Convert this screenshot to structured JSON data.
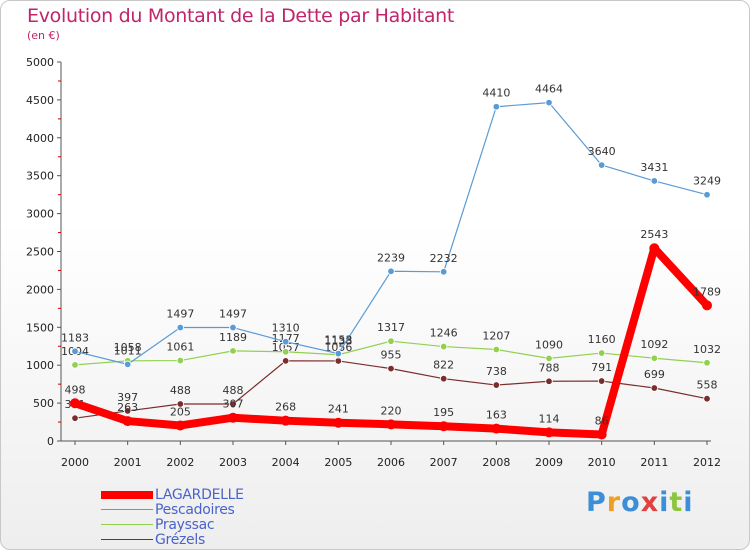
{
  "chart_data": {
    "type": "line",
    "title": "Evolution du Montant de la Dette par Habitant",
    "subtitle": "(en €)",
    "categories": [
      "2000",
      "2001",
      "2002",
      "2003",
      "2004",
      "2005",
      "2006",
      "2007",
      "2008",
      "2009",
      "2010",
      "2011",
      "2012"
    ],
    "ylim": [
      0,
      5000
    ],
    "yticks": [
      0,
      500,
      1000,
      1500,
      2000,
      2500,
      3000,
      3500,
      4000,
      4500,
      5000
    ],
    "grid": false,
    "legend_position": "bottom-left",
    "series": [
      {
        "name": "LAGARDELLE",
        "color": "#ff0000",
        "values": [
          498,
          263,
          205,
          307,
          268,
          241,
          220,
          195,
          163,
          114,
          86,
          2543,
          1789
        ]
      },
      {
        "name": "Pescadoires",
        "color": "#5b9bd5",
        "values": [
          1183,
          1011,
          1497,
          1497,
          1310,
          1153,
          2239,
          2232,
          4410,
          4464,
          3640,
          3431,
          3249
        ]
      },
      {
        "name": "Prayssac",
        "color": "#92d050",
        "values": [
          1004,
          1058,
          1061,
          1189,
          1177,
          1138,
          1317,
          1246,
          1207,
          1090,
          1160,
          1092,
          1032
        ]
      },
      {
        "name": "Grézels",
        "color": "#7b2c2c",
        "values": [
          301,
          397,
          488,
          488,
          1057,
          1056,
          955,
          822,
          738,
          788,
          791,
          699,
          558
        ]
      }
    ]
  },
  "logo": {
    "text": "Proxiti",
    "letters": [
      "P",
      "r",
      "o",
      "x",
      "i",
      "t",
      "i"
    ]
  }
}
